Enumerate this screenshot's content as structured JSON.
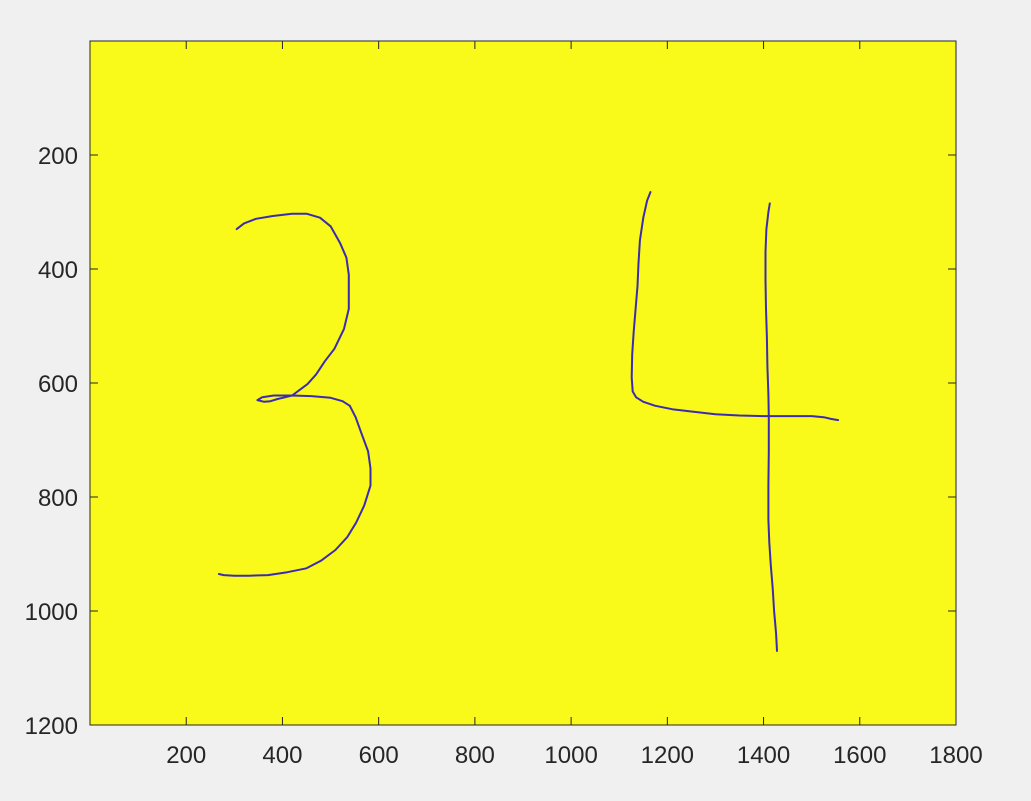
{
  "window": {
    "background": "#f0f0f0"
  },
  "chart_data": {
    "type": "image",
    "xlim": [
      0,
      1800
    ],
    "ylim": [
      0,
      1200
    ],
    "y_reversed": true,
    "x_ticks": [
      200,
      400,
      600,
      800,
      1000,
      1200,
      1400,
      1600,
      1800
    ],
    "y_ticks": [
      200,
      400,
      600,
      800,
      1000,
      1200
    ],
    "grid": false,
    "background_color": "#f9fa1a",
    "stroke_color": "#3c2bb0",
    "axis_color": "#262626",
    "strokes": [
      {
        "name": "digit-3-upper-arc",
        "points": [
          [
            305,
            330
          ],
          [
            320,
            320
          ],
          [
            345,
            312
          ],
          [
            380,
            307
          ],
          [
            420,
            303
          ],
          [
            450,
            303
          ],
          [
            478,
            310
          ],
          [
            500,
            325
          ],
          [
            520,
            355
          ],
          [
            533,
            380
          ],
          [
            538,
            410
          ],
          [
            538,
            470
          ],
          [
            528,
            505
          ],
          [
            508,
            540
          ],
          [
            488,
            562
          ],
          [
            470,
            585
          ],
          [
            452,
            602
          ],
          [
            436,
            612
          ],
          [
            420,
            622
          ],
          [
            405,
            625
          ],
          [
            390,
            628
          ],
          [
            375,
            632
          ],
          [
            362,
            633
          ],
          [
            348,
            630
          ],
          [
            358,
            625
          ],
          [
            382,
            622
          ],
          [
            420,
            622
          ],
          [
            460,
            623
          ],
          [
            500,
            626
          ],
          [
            525,
            632
          ],
          [
            540,
            640
          ]
        ]
      },
      {
        "name": "digit-3-lower-arc",
        "points": [
          [
            540,
            640
          ],
          [
            552,
            660
          ],
          [
            565,
            690
          ],
          [
            578,
            720
          ],
          [
            583,
            750
          ],
          [
            583,
            780
          ],
          [
            570,
            815
          ],
          [
            553,
            845
          ],
          [
            535,
            870
          ],
          [
            510,
            893
          ],
          [
            480,
            912
          ],
          [
            450,
            925
          ],
          [
            410,
            932
          ],
          [
            370,
            937
          ],
          [
            330,
            938
          ],
          [
            300,
            938
          ],
          [
            278,
            937
          ],
          [
            268,
            935
          ]
        ]
      },
      {
        "name": "digit-4-left-stroke",
        "points": [
          [
            1165,
            265
          ],
          [
            1158,
            280
          ],
          [
            1150,
            310
          ],
          [
            1143,
            350
          ],
          [
            1140,
            390
          ],
          [
            1138,
            430
          ],
          [
            1134,
            470
          ],
          [
            1130,
            510
          ],
          [
            1127,
            550
          ],
          [
            1126,
            590
          ],
          [
            1128,
            615
          ],
          [
            1135,
            625
          ],
          [
            1150,
            633
          ],
          [
            1175,
            640
          ],
          [
            1210,
            646
          ],
          [
            1250,
            650
          ],
          [
            1300,
            655
          ],
          [
            1350,
            657
          ],
          [
            1400,
            658
          ],
          [
            1450,
            658
          ],
          [
            1500,
            658
          ],
          [
            1525,
            660
          ],
          [
            1540,
            663
          ],
          [
            1555,
            665
          ]
        ]
      },
      {
        "name": "digit-4-vertical-stroke",
        "points": [
          [
            1413,
            285
          ],
          [
            1410,
            300
          ],
          [
            1406,
            330
          ],
          [
            1404,
            370
          ],
          [
            1404,
            420
          ],
          [
            1405,
            470
          ],
          [
            1407,
            520
          ],
          [
            1408,
            570
          ],
          [
            1410,
            620
          ],
          [
            1411,
            660
          ],
          [
            1411,
            720
          ],
          [
            1410,
            780
          ],
          [
            1410,
            840
          ],
          [
            1412,
            880
          ],
          [
            1415,
            920
          ],
          [
            1419,
            960
          ],
          [
            1422,
            1000
          ],
          [
            1426,
            1040
          ],
          [
            1428,
            1070
          ]
        ]
      }
    ]
  }
}
